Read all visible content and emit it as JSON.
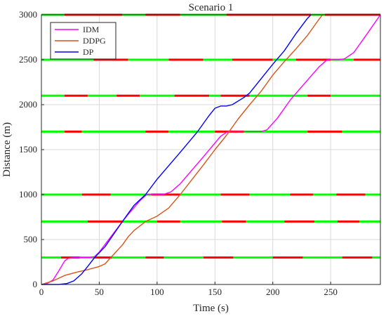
{
  "chart_data": {
    "type": "line",
    "title": "Scenario 1",
    "xlabel": "Time (s)",
    "ylabel": "Distance (m)",
    "xlim": [
      0,
      293
    ],
    "ylim": [
      0,
      3000
    ],
    "xticks": [
      0,
      50,
      100,
      150,
      200,
      250
    ],
    "yticks": [
      0,
      500,
      1000,
      1500,
      2000,
      2500,
      3000
    ],
    "grid": true,
    "legend_position": "top-left",
    "colors": {
      "idm": "#ff00ff",
      "ddpg": "#d95319",
      "dp": "#0000ff",
      "signal_green": "#00ff00",
      "signal_red": "#ff0000",
      "grid": "#d9d9d9",
      "axes": "#262626"
    },
    "series": [
      {
        "name": "IDM",
        "color_key": "idm",
        "points": [
          [
            0,
            0
          ],
          [
            5,
            10
          ],
          [
            10,
            50
          ],
          [
            15,
            150
          ],
          [
            20,
            260
          ],
          [
            23,
            290
          ],
          [
            28,
            300
          ],
          [
            36,
            300
          ],
          [
            42,
            300
          ],
          [
            46,
            310
          ],
          [
            50,
            360
          ],
          [
            60,
            530
          ],
          [
            70,
            700
          ],
          [
            75,
            780
          ],
          [
            85,
            930
          ],
          [
            91,
            1000
          ],
          [
            105,
            1000
          ],
          [
            112,
            1030
          ],
          [
            120,
            1120
          ],
          [
            140,
            1420
          ],
          [
            155,
            1650
          ],
          [
            161,
            1700
          ],
          [
            190,
            1700
          ],
          [
            195,
            1720
          ],
          [
            204,
            1850
          ],
          [
            215,
            2050
          ],
          [
            225,
            2200
          ],
          [
            240,
            2420
          ],
          [
            247,
            2500
          ],
          [
            257,
            2500
          ],
          [
            262,
            2510
          ],
          [
            270,
            2580
          ],
          [
            280,
            2760
          ],
          [
            293,
            3000
          ]
        ]
      },
      {
        "name": "DDPG",
        "color_key": "ddpg",
        "points": [
          [
            0,
            0
          ],
          [
            10,
            40
          ],
          [
            20,
            100
          ],
          [
            30,
            135
          ],
          [
            40,
            165
          ],
          [
            50,
            200
          ],
          [
            55,
            230
          ],
          [
            60,
            300
          ],
          [
            70,
            440
          ],
          [
            75,
            530
          ],
          [
            80,
            600
          ],
          [
            90,
            700
          ],
          [
            100,
            760
          ],
          [
            110,
            850
          ],
          [
            120,
            1000
          ],
          [
            140,
            1330
          ],
          [
            150,
            1500
          ],
          [
            160,
            1660
          ],
          [
            170,
            1840
          ],
          [
            180,
            2000
          ],
          [
            190,
            2150
          ],
          [
            200,
            2330
          ],
          [
            210,
            2480
          ],
          [
            220,
            2620
          ],
          [
            230,
            2770
          ],
          [
            240,
            2950
          ],
          [
            243,
            3000
          ]
        ]
      },
      {
        "name": "DP",
        "color_key": "dp",
        "points": [
          [
            0,
            0
          ],
          [
            15,
            0
          ],
          [
            22,
            10
          ],
          [
            28,
            40
          ],
          [
            35,
            120
          ],
          [
            40,
            200
          ],
          [
            46,
            300
          ],
          [
            55,
            420
          ],
          [
            70,
            700
          ],
          [
            80,
            880
          ],
          [
            90,
            1000
          ],
          [
            100,
            1170
          ],
          [
            120,
            1470
          ],
          [
            135,
            1700
          ],
          [
            145,
            1880
          ],
          [
            150,
            1960
          ],
          [
            155,
            1985
          ],
          [
            160,
            1985
          ],
          [
            165,
            2000
          ],
          [
            175,
            2080
          ],
          [
            180,
            2130
          ],
          [
            195,
            2370
          ],
          [
            200,
            2450
          ],
          [
            210,
            2600
          ],
          [
            220,
            2790
          ],
          [
            230,
            2960
          ],
          [
            233,
            3000
          ]
        ]
      }
    ],
    "signals": [
      {
        "distance": 300,
        "cycles": [
          [
            0,
            0,
            "green"
          ],
          [
            0,
            17,
            "green"
          ],
          [
            17,
            33,
            "red"
          ],
          [
            33,
            45,
            "green"
          ],
          [
            45,
            61,
            "red"
          ],
          [
            61,
            90,
            "green"
          ],
          [
            90,
            106,
            "red"
          ],
          [
            106,
            140,
            "green"
          ],
          [
            140,
            166,
            "red"
          ],
          [
            166,
            200,
            "green"
          ],
          [
            200,
            226,
            "red"
          ],
          [
            226,
            260,
            "green"
          ],
          [
            260,
            286,
            "red"
          ],
          [
            286,
            293,
            "green"
          ]
        ]
      },
      {
        "distance": 700,
        "cycles": [
          [
            0,
            40,
            "green"
          ],
          [
            40,
            71,
            "red"
          ],
          [
            71,
            100,
            "green"
          ],
          [
            100,
            120,
            "red"
          ],
          [
            120,
            156,
            "green"
          ],
          [
            156,
            177,
            "red"
          ],
          [
            177,
            210,
            "green"
          ],
          [
            210,
            236,
            "red"
          ],
          [
            236,
            256,
            "green"
          ],
          [
            256,
            275,
            "red"
          ],
          [
            275,
            293,
            "green"
          ]
        ]
      },
      {
        "distance": 1000,
        "cycles": [
          [
            0,
            35,
            "green"
          ],
          [
            35,
            60,
            "red"
          ],
          [
            60,
            95,
            "green"
          ],
          [
            95,
            120,
            "red"
          ],
          [
            120,
            155,
            "green"
          ],
          [
            155,
            180,
            "red"
          ],
          [
            180,
            215,
            "green"
          ],
          [
            215,
            235,
            "red"
          ],
          [
            235,
            255,
            "green"
          ],
          [
            255,
            280,
            "red"
          ],
          [
            280,
            293,
            "green"
          ]
        ]
      },
      {
        "distance": 1700,
        "cycles": [
          [
            0,
            20,
            "green"
          ],
          [
            20,
            35,
            "red"
          ],
          [
            35,
            90,
            "green"
          ],
          [
            90,
            110,
            "red"
          ],
          [
            110,
            150,
            "green"
          ],
          [
            150,
            175,
            "red"
          ],
          [
            175,
            230,
            "green"
          ],
          [
            230,
            260,
            "red"
          ],
          [
            260,
            293,
            "green"
          ]
        ]
      },
      {
        "distance": 2100,
        "cycles": [
          [
            0,
            20,
            "green"
          ],
          [
            20,
            40,
            "red"
          ],
          [
            40,
            65,
            "green"
          ],
          [
            65,
            85,
            "red"
          ],
          [
            85,
            115,
            "green"
          ],
          [
            115,
            145,
            "red"
          ],
          [
            145,
            155,
            "green"
          ],
          [
            155,
            180,
            "red"
          ],
          [
            180,
            230,
            "green"
          ],
          [
            230,
            250,
            "red"
          ],
          [
            250,
            293,
            "green"
          ]
        ]
      },
      {
        "distance": 2500,
        "cycles": [
          [
            0,
            45,
            "green"
          ],
          [
            45,
            75,
            "red"
          ],
          [
            75,
            110,
            "green"
          ],
          [
            110,
            140,
            "red"
          ],
          [
            140,
            165,
            "green"
          ],
          [
            165,
            200,
            "red"
          ],
          [
            200,
            220,
            "green"
          ],
          [
            220,
            250,
            "red"
          ],
          [
            250,
            270,
            "green"
          ],
          [
            270,
            293,
            "red"
          ]
        ]
      },
      {
        "distance": 3000,
        "cycles": [
          [
            0,
            20,
            "green"
          ],
          [
            20,
            70,
            "red"
          ],
          [
            70,
            90,
            "green"
          ],
          [
            90,
            120,
            "red"
          ],
          [
            120,
            160,
            "green"
          ],
          [
            160,
            233,
            "red"
          ],
          [
            233,
            245,
            "green"
          ],
          [
            245,
            293,
            "red"
          ]
        ]
      }
    ]
  }
}
